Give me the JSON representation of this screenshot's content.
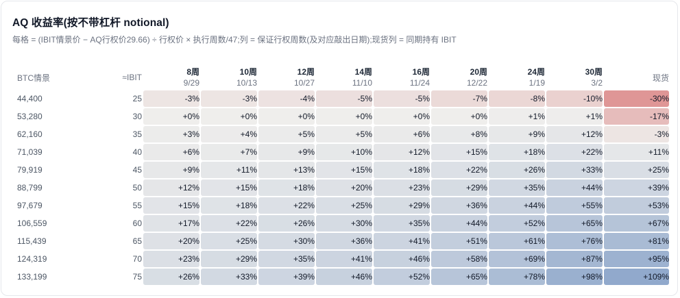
{
  "title": "AQ 收益率(按不带杠杆 notional)",
  "subtitle": "每格 = (IBIT情景价 − AQ行权价29.66) ÷ 行权价 × 执行周数/47;列 = 保证行权周数(及对应敲出日期);现货列 = 同期持有 IBIT",
  "headers": {
    "btc": "BTC情景",
    "ibit": "≈IBIT",
    "spot": "现货",
    "weeks": [
      {
        "label": "8周",
        "date": "9/29"
      },
      {
        "label": "10周",
        "date": "10/13"
      },
      {
        "label": "12周",
        "date": "10/27"
      },
      {
        "label": "14周",
        "date": "11/10"
      },
      {
        "label": "16周",
        "date": "11/24"
      },
      {
        "label": "20周",
        "date": "12/22"
      },
      {
        "label": "24周",
        "date": "1/19"
      },
      {
        "label": "30周",
        "date": "3/2"
      }
    ]
  },
  "rows": [
    {
      "btc": "44,400",
      "ibit": "25",
      "cells": [
        "-3%",
        "-3%",
        "-4%",
        "-5%",
        "-5%",
        "-7%",
        "-8%",
        "-10%"
      ],
      "spot": "-30%"
    },
    {
      "btc": "53,280",
      "ibit": "30",
      "cells": [
        "+0%",
        "+0%",
        "+0%",
        "+0%",
        "+0%",
        "+0%",
        "+1%",
        "+1%"
      ],
      "spot": "-17%"
    },
    {
      "btc": "62,160",
      "ibit": "35",
      "cells": [
        "+3%",
        "+4%",
        "+5%",
        "+5%",
        "+6%",
        "+8%",
        "+9%",
        "+12%"
      ],
      "spot": "-3%"
    },
    {
      "btc": "71,039",
      "ibit": "40",
      "cells": [
        "+6%",
        "+7%",
        "+9%",
        "+10%",
        "+12%",
        "+15%",
        "+18%",
        "+22%"
      ],
      "spot": "+11%"
    },
    {
      "btc": "79,919",
      "ibit": "45",
      "cells": [
        "+9%",
        "+11%",
        "+13%",
        "+15%",
        "+18%",
        "+22%",
        "+26%",
        "+33%"
      ],
      "spot": "+25%"
    },
    {
      "btc": "88,799",
      "ibit": "50",
      "cells": [
        "+12%",
        "+15%",
        "+18%",
        "+20%",
        "+23%",
        "+29%",
        "+35%",
        "+44%"
      ],
      "spot": "+39%"
    },
    {
      "btc": "97,679",
      "ibit": "55",
      "cells": [
        "+15%",
        "+18%",
        "+22%",
        "+25%",
        "+29%",
        "+36%",
        "+44%",
        "+55%"
      ],
      "spot": "+53%"
    },
    {
      "btc": "106,559",
      "ibit": "60",
      "cells": [
        "+17%",
        "+22%",
        "+26%",
        "+30%",
        "+35%",
        "+44%",
        "+52%",
        "+65%"
      ],
      "spot": "+67%"
    },
    {
      "btc": "115,439",
      "ibit": "65",
      "cells": [
        "+20%",
        "+25%",
        "+30%",
        "+36%",
        "+41%",
        "+51%",
        "+61%",
        "+76%"
      ],
      "spot": "+81%"
    },
    {
      "btc": "124,319",
      "ibit": "70",
      "cells": [
        "+23%",
        "+29%",
        "+35%",
        "+41%",
        "+46%",
        "+58%",
        "+69%",
        "+87%"
      ],
      "spot": "+95%"
    },
    {
      "btc": "133,199",
      "ibit": "75",
      "cells": [
        "+26%",
        "+33%",
        "+39%",
        "+46%",
        "+52%",
        "+65%",
        "+78%",
        "+98%"
      ],
      "spot": "+109%"
    }
  ],
  "colors": {
    "negative": "#d97979",
    "neutral": "#efeeec",
    "positive": "#7f9cc6"
  }
}
